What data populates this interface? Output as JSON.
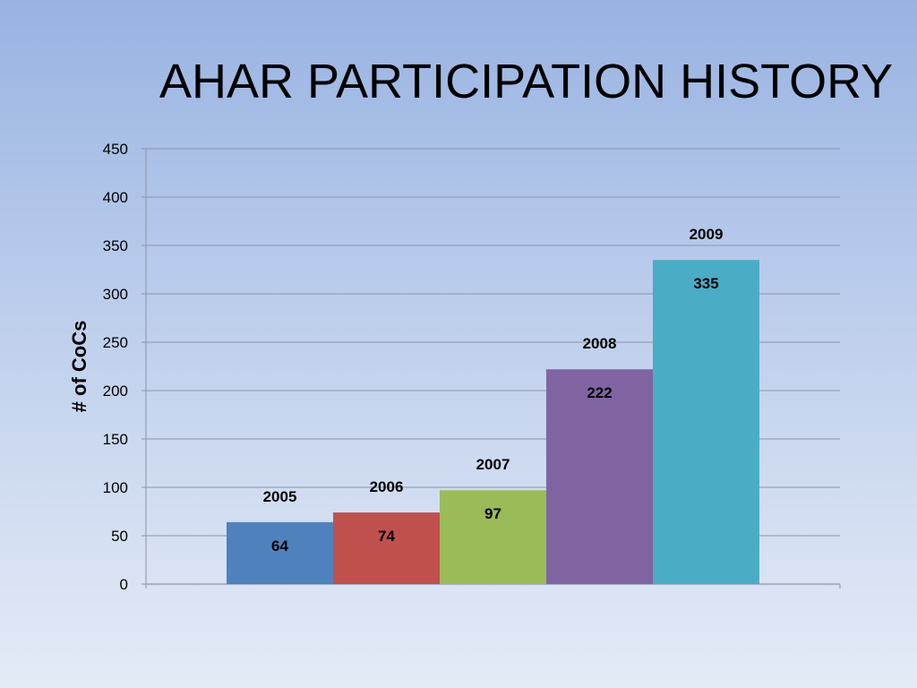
{
  "title": "AHAR PARTICIPATION HISTORY",
  "chart_data": {
    "type": "bar",
    "categories": [
      "2005",
      "2006",
      "2007",
      "2008",
      "2009"
    ],
    "values": [
      64,
      74,
      97,
      222,
      335
    ],
    "colors": [
      "#4f81bd",
      "#c0504d",
      "#9bbb59",
      "#8064a2",
      "#4bacc6"
    ],
    "ylabel": "# of CoCs",
    "ylim": [
      0,
      450
    ],
    "yticks": [
      0,
      50,
      100,
      150,
      200,
      250,
      300,
      350,
      400,
      450
    ],
    "grid": true,
    "data_labels": true,
    "category_labels_above_bars": true
  }
}
